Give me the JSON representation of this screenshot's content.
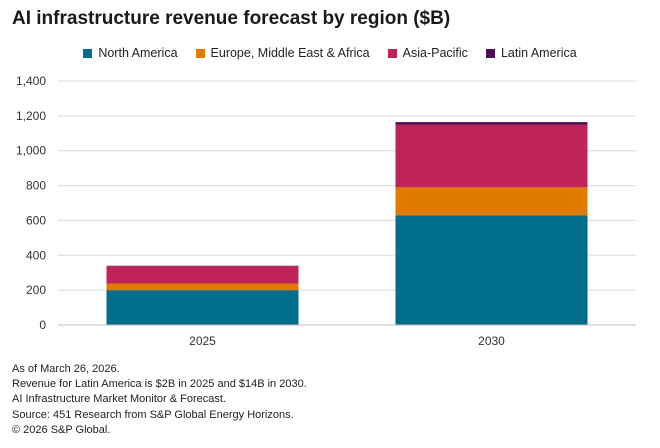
{
  "title": "AI infrastructure revenue forecast by region ($B)",
  "colors": {
    "North America": "#006e8a",
    "Europe, Middle East & Africa": "#e07b00",
    "Asia-Pacific": "#c0225a",
    "Latin America": "#4b1050"
  },
  "chart_data": {
    "type": "bar",
    "stacked": true,
    "title": "AI infrastructure revenue forecast by region ($B)",
    "categories": [
      "2025",
      "2030"
    ],
    "series": [
      {
        "name": "North America",
        "values": [
          200,
          630
        ]
      },
      {
        "name": "Europe, Middle East & Africa",
        "values": [
          38,
          160
        ]
      },
      {
        "name": "Asia-Pacific",
        "values": [
          100,
          360
        ]
      },
      {
        "name": "Latin America",
        "values": [
          2,
          14
        ]
      }
    ],
    "ylim": [
      0,
      1400
    ],
    "yticks": [
      0,
      200,
      400,
      600,
      800,
      1000,
      1200,
      1400
    ],
    "ytick_labels": [
      "0",
      "200",
      "400",
      "600",
      "800",
      "1,000",
      "1,200",
      "1,400"
    ],
    "grid": true,
    "legend_position": "top"
  },
  "notes": [
    "As of March 26, 2026.",
    "Revenue for Latin America is $2B in 2025 and $14B in 2030.",
    "AI Infrastructure Market Monitor & Forecast.",
    "Source: 451 Research from S&P Global Energy Horizons.",
    "© 2026 S&P Global."
  ]
}
